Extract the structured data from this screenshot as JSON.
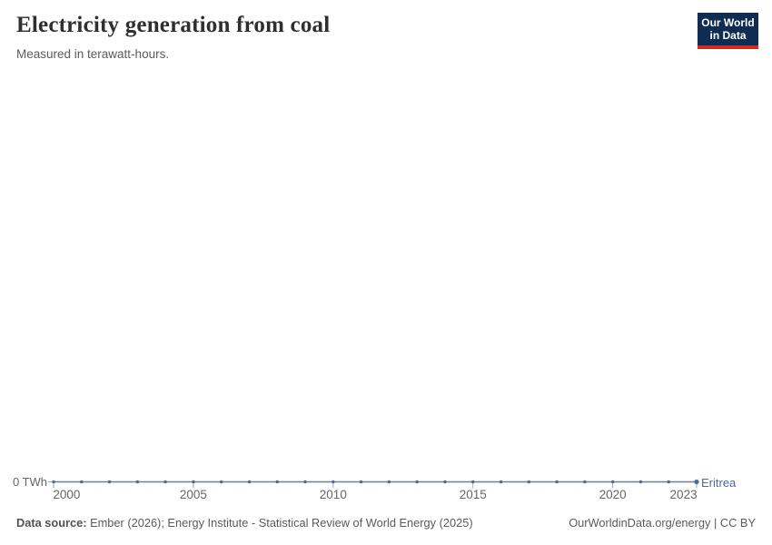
{
  "header": {
    "title": "Electricity generation from coal",
    "subtitle": "Measured in terawatt-hours.",
    "logo": {
      "line1": "Our World",
      "line2": "in Data",
      "bg_color": "#0f2d52",
      "stripe_color": "#cf2b1d"
    }
  },
  "chart_data": {
    "type": "line",
    "title": "Electricity generation from coal",
    "subtitle": "Measured in terawatt-hours.",
    "x": [
      2000,
      2001,
      2002,
      2003,
      2004,
      2005,
      2006,
      2007,
      2008,
      2009,
      2010,
      2011,
      2012,
      2013,
      2014,
      2015,
      2016,
      2017,
      2018,
      2019,
      2020,
      2021,
      2022,
      2023
    ],
    "series": [
      {
        "name": "Eritrea",
        "color": "#4C6A9C",
        "values": [
          0,
          0,
          0,
          0,
          0,
          0,
          0,
          0,
          0,
          0,
          0,
          0,
          0,
          0,
          0,
          0,
          0,
          0,
          0,
          0,
          0,
          0,
          0,
          0
        ]
      }
    ],
    "x_ticks": [
      2000,
      2005,
      2010,
      2015,
      2020,
      2023
    ],
    "y_tick_label": "0 TWh",
    "xlabel": "",
    "ylabel": "",
    "ylim": [
      0,
      0
    ],
    "grid": false,
    "legend_position": "end-of-line"
  },
  "footer": {
    "source_label": "Data source:",
    "source_text": " Ember (2026); Energy Institute - Statistical Review of World Energy (2025)",
    "link": "OurWorldinData.org/energy | CC BY"
  }
}
